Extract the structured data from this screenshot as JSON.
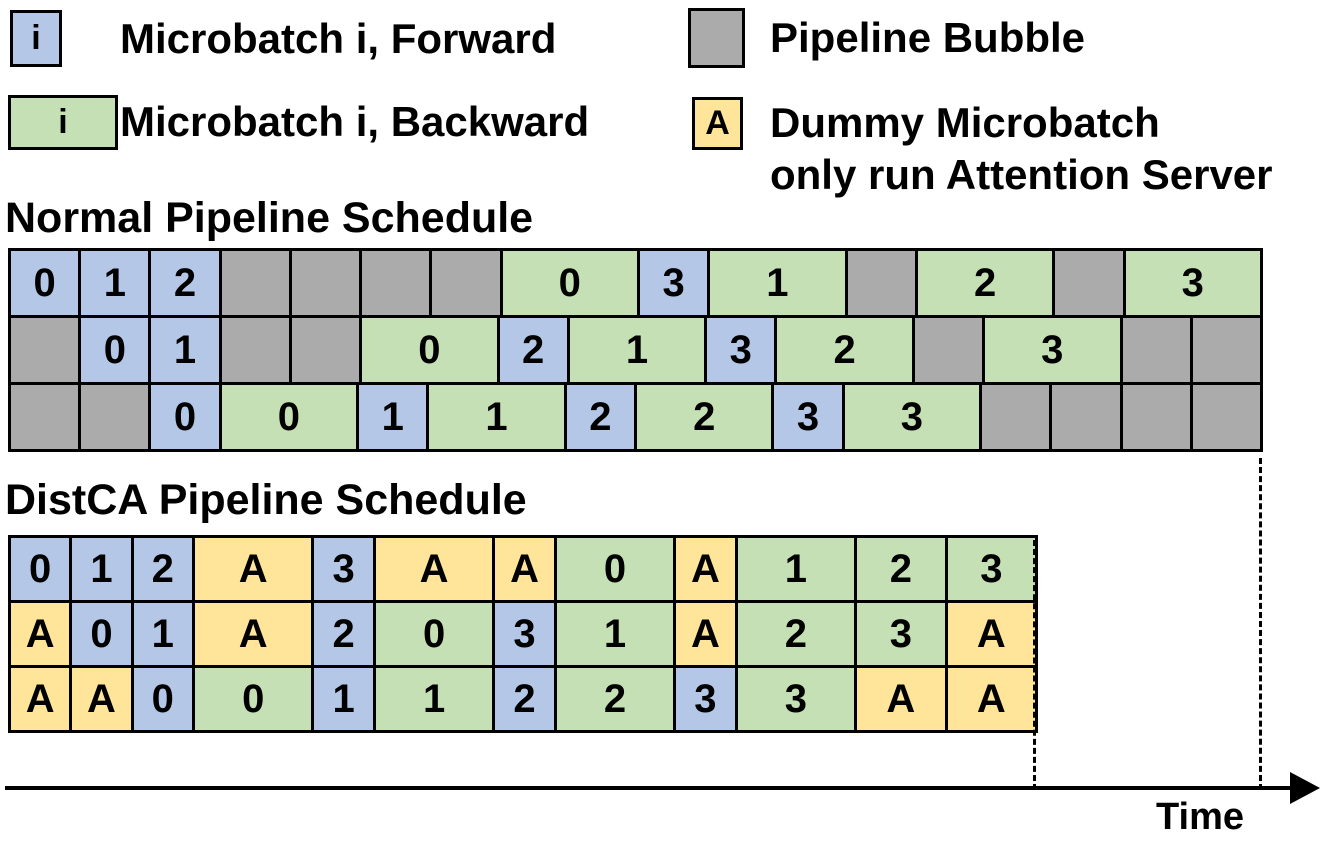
{
  "colors": {
    "forward": "#B4C7E7",
    "backward": "#C5E0B4",
    "bubble": "#ABABAB",
    "dummy": "#FFE599",
    "border": "#000000"
  },
  "legend": {
    "forward": {
      "swatch_text": "i",
      "label": "Microbatch i, Forward"
    },
    "backward": {
      "swatch_text": "i",
      "label": "Microbatch i, Backward"
    },
    "bubble": {
      "swatch_text": "",
      "label": "Pipeline Bubble"
    },
    "dummy": {
      "swatch_text": "A",
      "label_line1": "Dummy Microbatch",
      "label_line2": "only run Attention Server"
    }
  },
  "sections": {
    "normal": {
      "title": "Normal Pipeline Schedule"
    },
    "distca": {
      "title": "DistCA Pipeline Schedule"
    }
  },
  "axis": {
    "label": "Time"
  },
  "normal_rows": [
    [
      {
        "label": "0",
        "kind": "forward",
        "units": 1
      },
      {
        "label": "1",
        "kind": "forward",
        "units": 1
      },
      {
        "label": "2",
        "kind": "forward",
        "units": 1
      },
      {
        "label": "",
        "kind": "bubble",
        "units": 1
      },
      {
        "label": "",
        "kind": "bubble",
        "units": 1
      },
      {
        "label": "",
        "kind": "bubble",
        "units": 1
      },
      {
        "label": "",
        "kind": "bubble",
        "units": 1
      },
      {
        "label": "0",
        "kind": "backward",
        "units": 2
      },
      {
        "label": "3",
        "kind": "forward",
        "units": 1
      },
      {
        "label": "1",
        "kind": "backward",
        "units": 2
      },
      {
        "label": "",
        "kind": "bubble",
        "units": 1
      },
      {
        "label": "2",
        "kind": "backward",
        "units": 2
      },
      {
        "label": "",
        "kind": "bubble",
        "units": 1
      },
      {
        "label": "3",
        "kind": "backward",
        "units": 2
      }
    ],
    [
      {
        "label": "",
        "kind": "bubble",
        "units": 1
      },
      {
        "label": "0",
        "kind": "forward",
        "units": 1
      },
      {
        "label": "1",
        "kind": "forward",
        "units": 1
      },
      {
        "label": "",
        "kind": "bubble",
        "units": 1
      },
      {
        "label": "",
        "kind": "bubble",
        "units": 1
      },
      {
        "label": "0",
        "kind": "backward",
        "units": 2
      },
      {
        "label": "2",
        "kind": "forward",
        "units": 1
      },
      {
        "label": "1",
        "kind": "backward",
        "units": 2
      },
      {
        "label": "3",
        "kind": "forward",
        "units": 1
      },
      {
        "label": "2",
        "kind": "backward",
        "units": 2
      },
      {
        "label": "",
        "kind": "bubble",
        "units": 1
      },
      {
        "label": "3",
        "kind": "backward",
        "units": 2
      },
      {
        "label": "",
        "kind": "bubble",
        "units": 1
      },
      {
        "label": "",
        "kind": "bubble",
        "units": 1
      }
    ],
    [
      {
        "label": "",
        "kind": "bubble",
        "units": 1
      },
      {
        "label": "",
        "kind": "bubble",
        "units": 1
      },
      {
        "label": "0",
        "kind": "forward",
        "units": 1
      },
      {
        "label": "0",
        "kind": "backward",
        "units": 2
      },
      {
        "label": "1",
        "kind": "forward",
        "units": 1
      },
      {
        "label": "1",
        "kind": "backward",
        "units": 2
      },
      {
        "label": "2",
        "kind": "forward",
        "units": 1
      },
      {
        "label": "2",
        "kind": "backward",
        "units": 2
      },
      {
        "label": "3",
        "kind": "forward",
        "units": 1
      },
      {
        "label": "3",
        "kind": "backward",
        "units": 2
      },
      {
        "label": "",
        "kind": "bubble",
        "units": 1
      },
      {
        "label": "",
        "kind": "bubble",
        "units": 1
      },
      {
        "label": "",
        "kind": "bubble",
        "units": 1
      },
      {
        "label": "",
        "kind": "bubble",
        "units": 1
      }
    ]
  ],
  "distca_rows": [
    [
      {
        "label": "0",
        "kind": "forward",
        "units": 1
      },
      {
        "label": "1",
        "kind": "forward",
        "units": 1
      },
      {
        "label": "2",
        "kind": "forward",
        "units": 1
      },
      {
        "label": "A",
        "kind": "dummy",
        "units": 2
      },
      {
        "label": "3",
        "kind": "forward",
        "units": 1
      },
      {
        "label": "A",
        "kind": "dummy",
        "units": 2
      },
      {
        "label": "A",
        "kind": "dummy",
        "units": 1
      },
      {
        "label": "0",
        "kind": "backward",
        "units": 2
      },
      {
        "label": "A",
        "kind": "dummy",
        "units": 1
      },
      {
        "label": "1",
        "kind": "backward",
        "units": 2
      },
      {
        "label": "2",
        "kind": "backward",
        "units": 1.5
      },
      {
        "label": "3",
        "kind": "backward",
        "units": 1.5
      }
    ],
    [
      {
        "label": "A",
        "kind": "dummy",
        "units": 1
      },
      {
        "label": "0",
        "kind": "forward",
        "units": 1
      },
      {
        "label": "1",
        "kind": "forward",
        "units": 1
      },
      {
        "label": "A",
        "kind": "dummy",
        "units": 2
      },
      {
        "label": "2",
        "kind": "forward",
        "units": 1
      },
      {
        "label": "0",
        "kind": "backward",
        "units": 2
      },
      {
        "label": "3",
        "kind": "forward",
        "units": 1
      },
      {
        "label": "1",
        "kind": "backward",
        "units": 2
      },
      {
        "label": "A",
        "kind": "dummy",
        "units": 1
      },
      {
        "label": "2",
        "kind": "backward",
        "units": 2
      },
      {
        "label": "3",
        "kind": "backward",
        "units": 1.5
      },
      {
        "label": "A",
        "kind": "dummy",
        "units": 1.5
      }
    ],
    [
      {
        "label": "A",
        "kind": "dummy",
        "units": 1
      },
      {
        "label": "A",
        "kind": "dummy",
        "units": 1
      },
      {
        "label": "0",
        "kind": "forward",
        "units": 1
      },
      {
        "label": "0",
        "kind": "backward",
        "units": 2
      },
      {
        "label": "1",
        "kind": "forward",
        "units": 1
      },
      {
        "label": "1",
        "kind": "backward",
        "units": 2
      },
      {
        "label": "2",
        "kind": "forward",
        "units": 1
      },
      {
        "label": "2",
        "kind": "backward",
        "units": 2
      },
      {
        "label": "3",
        "kind": "forward",
        "units": 1
      },
      {
        "label": "3",
        "kind": "backward",
        "units": 2
      },
      {
        "label": "A",
        "kind": "dummy",
        "units": 1.5
      },
      {
        "label": "A",
        "kind": "dummy",
        "units": 1.5
      }
    ]
  ]
}
